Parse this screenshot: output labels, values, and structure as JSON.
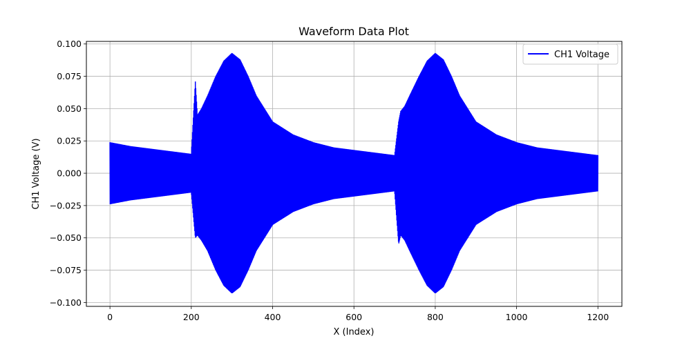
{
  "chart_data": {
    "type": "line",
    "title": "Waveform Data Plot",
    "xlabel": "X (Index)",
    "ylabel": "CH1 Voltage (V)",
    "xlim": [
      -58,
      1259
    ],
    "ylim": [
      -0.103,
      0.102
    ],
    "xticks": [
      0,
      200,
      400,
      600,
      800,
      1000,
      1200
    ],
    "xtick_labels": [
      "0",
      "200",
      "400",
      "600",
      "800",
      "1000",
      "1200"
    ],
    "yticks": [
      -0.1,
      -0.075,
      -0.05,
      -0.025,
      0.0,
      0.025,
      0.05,
      0.075,
      0.1
    ],
    "ytick_labels": [
      "−0.100",
      "−0.075",
      "−0.050",
      "−0.025",
      "0.000",
      "0.025",
      "0.050",
      "0.075",
      "0.100"
    ],
    "grid": true,
    "legend_position": "top-right",
    "series": [
      {
        "name": "CH1 Voltage",
        "color": "#0000ff",
        "envelope": {
          "x": [
            0,
            50,
            100,
            150,
            200,
            210,
            215,
            225,
            240,
            260,
            280,
            300,
            320,
            340,
            360,
            400,
            450,
            500,
            550,
            600,
            650,
            700,
            710,
            715,
            725,
            740,
            760,
            780,
            800,
            820,
            840,
            860,
            900,
            950,
            1000,
            1050,
            1100,
            1150,
            1200
          ],
          "upper": [
            0.024,
            0.021,
            0.019,
            0.017,
            0.015,
            0.071,
            0.045,
            0.05,
            0.06,
            0.075,
            0.087,
            0.093,
            0.088,
            0.075,
            0.06,
            0.04,
            0.03,
            0.024,
            0.02,
            0.018,
            0.016,
            0.014,
            0.04,
            0.048,
            0.052,
            0.062,
            0.075,
            0.087,
            0.093,
            0.088,
            0.075,
            0.06,
            0.04,
            0.03,
            0.024,
            0.02,
            0.018,
            0.016,
            0.014
          ],
          "lower": [
            -0.024,
            -0.021,
            -0.019,
            -0.017,
            -0.015,
            -0.05,
            -0.048,
            -0.052,
            -0.06,
            -0.075,
            -0.087,
            -0.093,
            -0.088,
            -0.075,
            -0.06,
            -0.04,
            -0.03,
            -0.024,
            -0.02,
            -0.018,
            -0.016,
            -0.014,
            -0.055,
            -0.048,
            -0.052,
            -0.062,
            -0.075,
            -0.087,
            -0.093,
            -0.088,
            -0.075,
            -0.06,
            -0.04,
            -0.03,
            -0.024,
            -0.02,
            -0.018,
            -0.016,
            -0.014
          ]
        }
      }
    ]
  }
}
